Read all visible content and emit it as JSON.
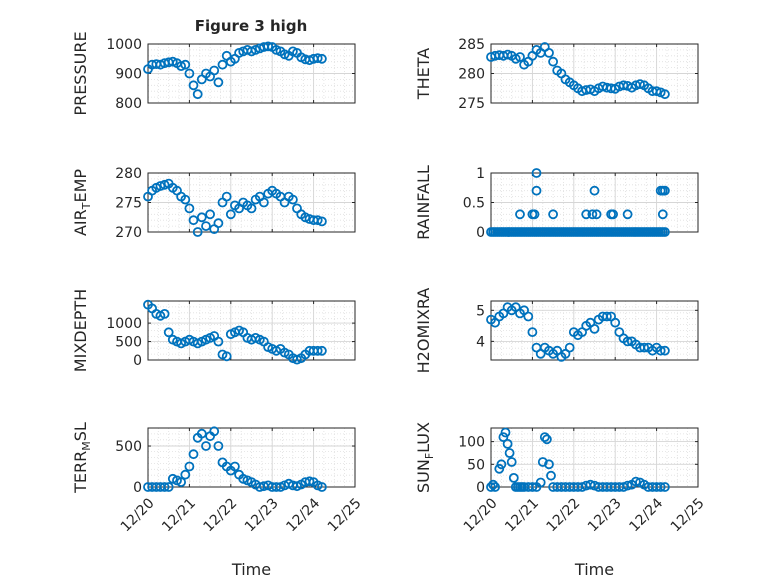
{
  "figure_title": "Figure 3 high",
  "x_label": "Time",
  "x_tick_labels": [
    "12/20",
    "12/21",
    "12/22",
    "12/23",
    "12/24",
    "12/25"
  ],
  "colors": {
    "marker": "#0072bd",
    "axes": "#262626",
    "grid": "#dfdfdf"
  },
  "chart_data": [
    {
      "type": "scatter",
      "ylabel": "PRESSURE",
      "ylim": [
        800,
        1000
      ],
      "yticks": [
        800,
        900,
        1000
      ],
      "ytick_labels": [
        "800",
        "900",
        "1000"
      ],
      "xlim": [
        0,
        5
      ],
      "grid": true,
      "x": [
        0.0,
        0.1,
        0.2,
        0.3,
        0.4,
        0.5,
        0.6,
        0.7,
        0.8,
        0.9,
        1.0,
        1.1,
        1.2,
        1.3,
        1.4,
        1.5,
        1.6,
        1.7,
        1.8,
        1.9,
        2.0,
        2.1,
        2.2,
        2.3,
        2.4,
        2.5,
        2.6,
        2.7,
        2.8,
        2.9,
        3.0,
        3.1,
        3.2,
        3.3,
        3.4,
        3.5,
        3.6,
        3.7,
        3.8,
        3.9,
        4.0,
        4.1,
        4.2
      ],
      "y": [
        915,
        930,
        932,
        930,
        935,
        938,
        940,
        935,
        925,
        930,
        900,
        860,
        830,
        880,
        900,
        890,
        910,
        870,
        930,
        960,
        940,
        950,
        970,
        975,
        980,
        975,
        980,
        985,
        990,
        992,
        990,
        980,
        975,
        965,
        960,
        975,
        970,
        955,
        948,
        945,
        950,
        952,
        950
      ]
    },
    {
      "type": "scatter",
      "ylabel": "THETA",
      "ylim": [
        275,
        285
      ],
      "yticks": [
        275,
        280,
        285
      ],
      "ytick_labels": [
        "275",
        "280",
        "285"
      ],
      "xlim": [
        0,
        5
      ],
      "grid": true,
      "x": [
        0.0,
        0.1,
        0.2,
        0.3,
        0.4,
        0.5,
        0.6,
        0.7,
        0.8,
        0.9,
        1.0,
        1.1,
        1.2,
        1.3,
        1.4,
        1.5,
        1.6,
        1.7,
        1.8,
        1.9,
        2.0,
        2.1,
        2.2,
        2.3,
        2.4,
        2.5,
        2.6,
        2.7,
        2.8,
        2.9,
        3.0,
        3.1,
        3.2,
        3.3,
        3.4,
        3.5,
        3.6,
        3.7,
        3.8,
        3.9,
        4.0,
        4.1,
        4.2
      ],
      "y": [
        282.8,
        283.0,
        283.1,
        283.0,
        283.2,
        283.0,
        282.5,
        282.8,
        281.5,
        282.0,
        283.0,
        284.0,
        283.5,
        284.5,
        283.5,
        282.0,
        280.5,
        280.0,
        279.0,
        278.5,
        278.0,
        277.5,
        277.0,
        277.2,
        277.3,
        277.0,
        277.5,
        277.8,
        277.6,
        277.5,
        277.4,
        277.8,
        278.0,
        277.9,
        277.6,
        278.0,
        278.2,
        278.0,
        277.5,
        277.0,
        277.0,
        276.8,
        276.5
      ]
    },
    {
      "type": "scatter",
      "ylabel": "AIR_TEMP",
      "ylim": [
        270,
        280
      ],
      "yticks": [
        270,
        275,
        280
      ],
      "ytick_labels": [
        "270",
        "275",
        "280"
      ],
      "xlim": [
        0,
        5
      ],
      "grid": true,
      "x": [
        0.0,
        0.1,
        0.2,
        0.3,
        0.4,
        0.5,
        0.6,
        0.7,
        0.8,
        0.9,
        1.0,
        1.1,
        1.2,
        1.3,
        1.4,
        1.5,
        1.6,
        1.7,
        1.8,
        1.9,
        2.0,
        2.1,
        2.2,
        2.3,
        2.4,
        2.5,
        2.6,
        2.7,
        2.8,
        2.9,
        3.0,
        3.1,
        3.2,
        3.3,
        3.4,
        3.5,
        3.6,
        3.7,
        3.8,
        3.9,
        4.0,
        4.1,
        4.2
      ],
      "y": [
        276.0,
        277.0,
        277.5,
        277.8,
        278.0,
        278.2,
        277.5,
        277.0,
        276.0,
        275.5,
        274.0,
        272.0,
        270.0,
        272.5,
        271.0,
        273.0,
        270.5,
        271.5,
        275.0,
        276.0,
        273.0,
        274.5,
        274.0,
        275.0,
        274.5,
        274.0,
        275.5,
        276.0,
        275.0,
        276.5,
        277.0,
        276.5,
        276.0,
        275.0,
        276.0,
        275.5,
        274.0,
        273.0,
        272.5,
        272.2,
        272.0,
        272.0,
        271.8
      ]
    },
    {
      "type": "scatter",
      "ylabel": "RAINFALL",
      "ylim": [
        0,
        1
      ],
      "yticks": [
        0,
        0.5,
        1
      ],
      "ytick_labels": [
        "0",
        "0.5",
        "1"
      ],
      "xlim": [
        0,
        5
      ],
      "grid": true,
      "x": [
        0.0,
        0.05,
        0.1,
        0.15,
        0.2,
        0.25,
        0.3,
        0.35,
        0.4,
        0.45,
        0.5,
        0.55,
        0.6,
        0.65,
        0.7,
        0.75,
        0.8,
        0.85,
        0.9,
        0.95,
        1.0,
        1.05,
        1.1,
        1.15,
        1.2,
        1.25,
        1.3,
        1.35,
        1.4,
        1.45,
        1.5,
        1.55,
        1.6,
        1.65,
        1.7,
        1.75,
        1.8,
        1.85,
        1.9,
        1.95,
        2.0,
        2.05,
        2.1,
        2.15,
        2.2,
        2.25,
        2.3,
        2.35,
        2.4,
        2.45,
        2.5,
        2.55,
        2.6,
        2.65,
        2.7,
        2.75,
        2.8,
        2.85,
        2.9,
        2.95,
        3.0,
        3.05,
        3.1,
        3.15,
        3.2,
        3.25,
        3.3,
        3.35,
        3.4,
        3.45,
        3.5,
        3.55,
        3.6,
        3.65,
        3.7,
        3.75,
        3.8,
        3.85,
        3.9,
        3.95,
        4.0,
        4.05,
        4.1,
        4.15,
        4.2,
        0.7,
        1.0,
        1.05,
        1.1,
        1.1,
        1.5,
        2.3,
        2.45,
        2.5,
        2.55,
        2.9,
        2.95,
        3.3,
        4.1,
        4.15,
        4.15,
        4.2
      ],
      "y": [
        0,
        0,
        0,
        0,
        0,
        0,
        0,
        0,
        0,
        0,
        0,
        0,
        0,
        0,
        0,
        0,
        0,
        0,
        0,
        0,
        0,
        0,
        0,
        0,
        0,
        0,
        0,
        0,
        0,
        0,
        0,
        0,
        0,
        0,
        0,
        0,
        0,
        0,
        0,
        0,
        0,
        0,
        0,
        0,
        0,
        0,
        0,
        0,
        0,
        0,
        0,
        0,
        0,
        0,
        0,
        0,
        0,
        0,
        0,
        0,
        0,
        0,
        0,
        0,
        0,
        0,
        0,
        0,
        0,
        0,
        0,
        0,
        0,
        0,
        0,
        0,
        0,
        0,
        0,
        0,
        0,
        0,
        0,
        0,
        0,
        0.3,
        0.3,
        0.3,
        1.0,
        0.7,
        0.3,
        0.3,
        0.3,
        0.7,
        0.3,
        0.3,
        0.3,
        0.3,
        0.7,
        0.3,
        0.7,
        0.7
      ]
    },
    {
      "type": "scatter",
      "ylabel": "MIXDEPTH",
      "ylim": [
        0,
        1600
      ],
      "yticks": [
        0,
        500,
        1000
      ],
      "ytick_labels": [
        "0",
        "500",
        "1000"
      ],
      "xlim": [
        0,
        5
      ],
      "grid": true,
      "x": [
        0.0,
        0.1,
        0.2,
        0.3,
        0.4,
        0.5,
        0.6,
        0.7,
        0.8,
        0.9,
        1.0,
        1.1,
        1.2,
        1.3,
        1.4,
        1.5,
        1.6,
        1.7,
        1.8,
        1.9,
        2.0,
        2.1,
        2.2,
        2.3,
        2.4,
        2.5,
        2.6,
        2.7,
        2.8,
        2.9,
        3.0,
        3.1,
        3.2,
        3.3,
        3.4,
        3.5,
        3.6,
        3.7,
        3.8,
        3.9,
        4.0,
        4.1,
        4.2
      ],
      "y": [
        1500,
        1400,
        1250,
        1200,
        1250,
        750,
        550,
        500,
        450,
        500,
        550,
        500,
        450,
        500,
        550,
        600,
        650,
        500,
        150,
        100,
        700,
        750,
        800,
        750,
        600,
        550,
        600,
        550,
        500,
        350,
        300,
        250,
        300,
        200,
        150,
        50,
        10,
        50,
        150,
        250,
        250,
        250,
        250
      ]
    },
    {
      "type": "scatter",
      "ylabel": "H2OMIXRA",
      "ylim": [
        3.4,
        5.3
      ],
      "yticks": [
        4,
        5
      ],
      "ytick_labels": [
        "4",
        "5"
      ],
      "xlim": [
        0,
        5
      ],
      "grid": true,
      "x": [
        0.0,
        0.1,
        0.2,
        0.3,
        0.4,
        0.5,
        0.6,
        0.7,
        0.8,
        0.9,
        1.0,
        1.1,
        1.2,
        1.3,
        1.4,
        1.5,
        1.6,
        1.7,
        1.8,
        1.9,
        2.0,
        2.1,
        2.2,
        2.3,
        2.4,
        2.5,
        2.6,
        2.7,
        2.8,
        2.9,
        3.0,
        3.1,
        3.2,
        3.3,
        3.4,
        3.5,
        3.6,
        3.7,
        3.8,
        3.9,
        4.0,
        4.1,
        4.2
      ],
      "y": [
        4.7,
        4.6,
        4.8,
        4.9,
        5.1,
        5.0,
        5.1,
        4.9,
        5.0,
        4.8,
        4.3,
        3.8,
        3.6,
        3.8,
        3.7,
        3.6,
        3.7,
        3.5,
        3.6,
        3.8,
        4.3,
        4.2,
        4.3,
        4.5,
        4.6,
        4.4,
        4.7,
        4.8,
        4.8,
        4.8,
        4.6,
        4.3,
        4.1,
        4.0,
        4.0,
        3.9,
        3.8,
        3.8,
        3.8,
        3.7,
        3.8,
        3.7,
        3.7
      ]
    },
    {
      "type": "scatter",
      "ylabel": "TERR_MSL",
      "ylim": [
        0,
        720
      ],
      "yticks": [
        0,
        500
      ],
      "ytick_labels": [
        "0",
        "500"
      ],
      "xlim": [
        0,
        5
      ],
      "grid": true,
      "x": [
        0.0,
        0.1,
        0.2,
        0.3,
        0.4,
        0.5,
        0.6,
        0.7,
        0.8,
        0.9,
        1.0,
        1.1,
        1.2,
        1.3,
        1.4,
        1.5,
        1.6,
        1.7,
        1.8,
        1.9,
        2.0,
        2.1,
        2.2,
        2.3,
        2.4,
        2.5,
        2.6,
        2.7,
        2.8,
        2.9,
        3.0,
        3.1,
        3.2,
        3.3,
        3.4,
        3.5,
        3.6,
        3.7,
        3.8,
        3.9,
        4.0,
        4.1,
        4.2
      ],
      "y": [
        0,
        0,
        0,
        0,
        0,
        0,
        100,
        80,
        60,
        150,
        250,
        400,
        600,
        650,
        500,
        620,
        680,
        500,
        300,
        250,
        200,
        250,
        150,
        100,
        80,
        60,
        30,
        0,
        10,
        20,
        0,
        0,
        0,
        20,
        40,
        20,
        10,
        30,
        60,
        70,
        60,
        20,
        0
      ]
    },
    {
      "type": "scatter",
      "ylabel": "SUN_FLUX",
      "ylim": [
        0,
        130
      ],
      "yticks": [
        0,
        50,
        100
      ],
      "ytick_labels": [
        "0",
        "50",
        "100"
      ],
      "xlim": [
        0,
        5
      ],
      "grid": true,
      "x": [
        0.0,
        0.05,
        0.1,
        0.2,
        0.25,
        0.3,
        0.35,
        0.4,
        0.45,
        0.5,
        0.55,
        0.6,
        0.65,
        0.7,
        0.75,
        0.8,
        0.9,
        1.0,
        1.1,
        1.2,
        1.25,
        1.3,
        1.35,
        1.4,
        1.45,
        1.5,
        1.6,
        1.7,
        1.8,
        1.9,
        2.0,
        2.1,
        2.2,
        2.3,
        2.4,
        2.5,
        2.6,
        2.7,
        2.8,
        2.9,
        3.0,
        3.1,
        3.2,
        3.3,
        3.4,
        3.5,
        3.6,
        3.7,
        3.8,
        3.9,
        4.0,
        4.1,
        4.2
      ],
      "y": [
        0,
        5,
        0,
        40,
        50,
        110,
        120,
        95,
        75,
        55,
        20,
        0,
        0,
        0,
        0,
        0,
        0,
        0,
        0,
        10,
        55,
        110,
        105,
        50,
        25,
        0,
        0,
        0,
        0,
        0,
        0,
        0,
        0,
        3,
        5,
        3,
        0,
        0,
        0,
        0,
        0,
        0,
        0,
        3,
        5,
        12,
        10,
        5,
        0,
        0,
        0,
        0,
        0
      ]
    }
  ]
}
